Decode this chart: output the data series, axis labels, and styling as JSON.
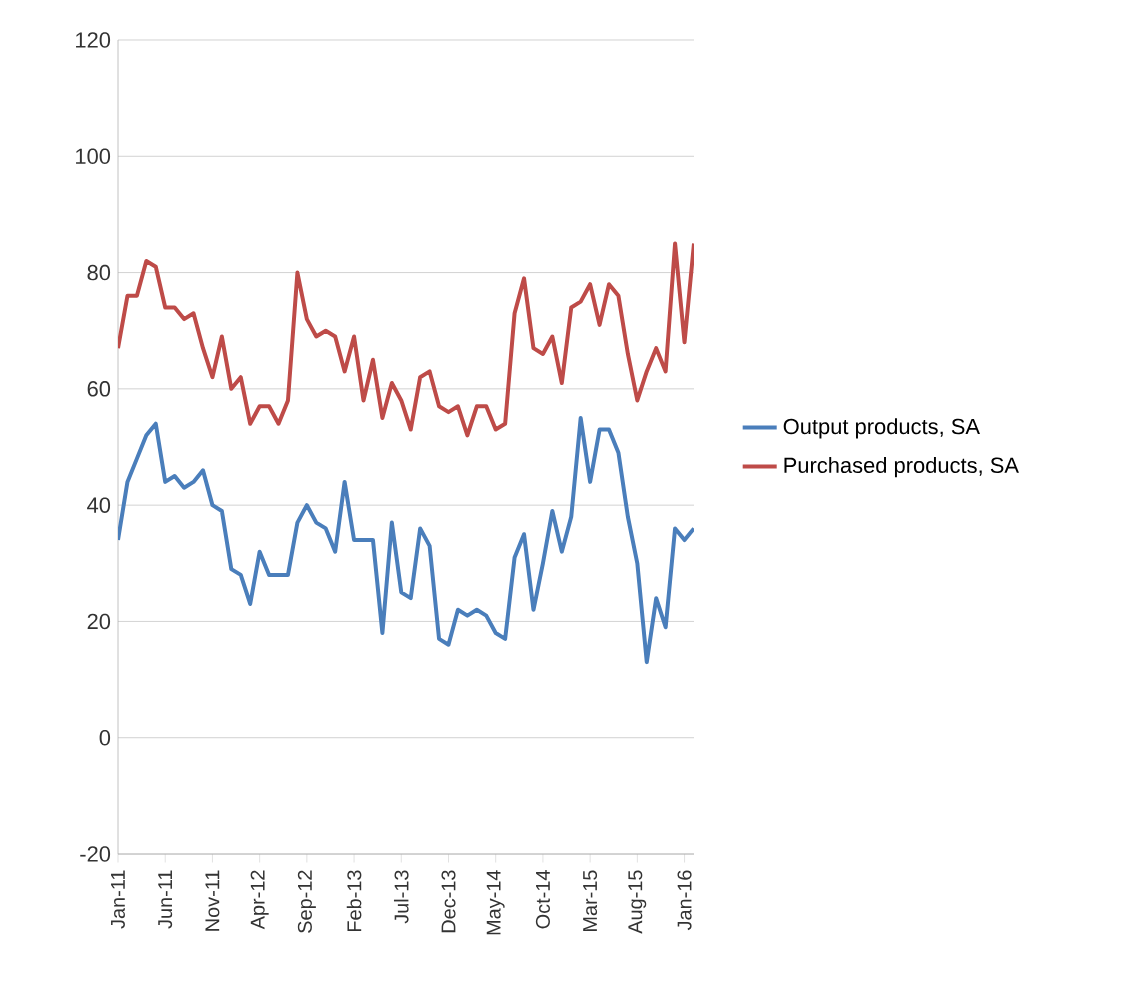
{
  "chart_data": {
    "type": "line",
    "categories": [
      "Jan-11",
      null,
      null,
      null,
      null,
      "Jun-11",
      null,
      null,
      null,
      null,
      "Nov-11",
      null,
      null,
      null,
      null,
      "Apr-12",
      null,
      null,
      null,
      null,
      "Sep-12",
      null,
      null,
      null,
      null,
      "Feb-13",
      null,
      null,
      null,
      null,
      "Jul-13",
      null,
      null,
      null,
      null,
      "Dec-13",
      null,
      null,
      null,
      null,
      "May-14",
      null,
      null,
      null,
      null,
      "Oct-14",
      null,
      null,
      null,
      null,
      "Mar-15",
      null,
      null,
      null,
      null,
      "Aug-15",
      null,
      null,
      null,
      null,
      "Jan-16",
      null
    ],
    "series": [
      {
        "name": "Output products, SA",
        "color": "#4a7ebb",
        "values": [
          34,
          44,
          48,
          52,
          54,
          44,
          45,
          43,
          44,
          46,
          40,
          39,
          29,
          28,
          23,
          32,
          28,
          28,
          28,
          37,
          40,
          37,
          36,
          32,
          44,
          34,
          34,
          34,
          18,
          37,
          25,
          24,
          36,
          33,
          17,
          16,
          22,
          21,
          22,
          21,
          18,
          17,
          31,
          35,
          22,
          30,
          39,
          32,
          38,
          55,
          44,
          53,
          53,
          49,
          38,
          30,
          13,
          24,
          19,
          36,
          34,
          36
        ]
      },
      {
        "name": "Purchased products, SA",
        "color": "#be4b48",
        "values": [
          67,
          76,
          76,
          82,
          81,
          74,
          74,
          72,
          73,
          67,
          62,
          69,
          60,
          62,
          54,
          57,
          57,
          54,
          58,
          80,
          72,
          69,
          70,
          69,
          63,
          69,
          58,
          65,
          55,
          61,
          58,
          53,
          62,
          63,
          57,
          56,
          57,
          52,
          57,
          57,
          53,
          54,
          73,
          79,
          67,
          66,
          69,
          61,
          74,
          75,
          78,
          71,
          78,
          76,
          66,
          58,
          63,
          67,
          63,
          85,
          68,
          85
        ]
      }
    ],
    "ylim": [
      -20,
      120
    ],
    "yticks": [
      -20,
      0,
      20,
      40,
      60,
      80,
      100,
      120
    ],
    "grid": "y",
    "legend": "right",
    "marker": "none",
    "line_style": "solid"
  }
}
